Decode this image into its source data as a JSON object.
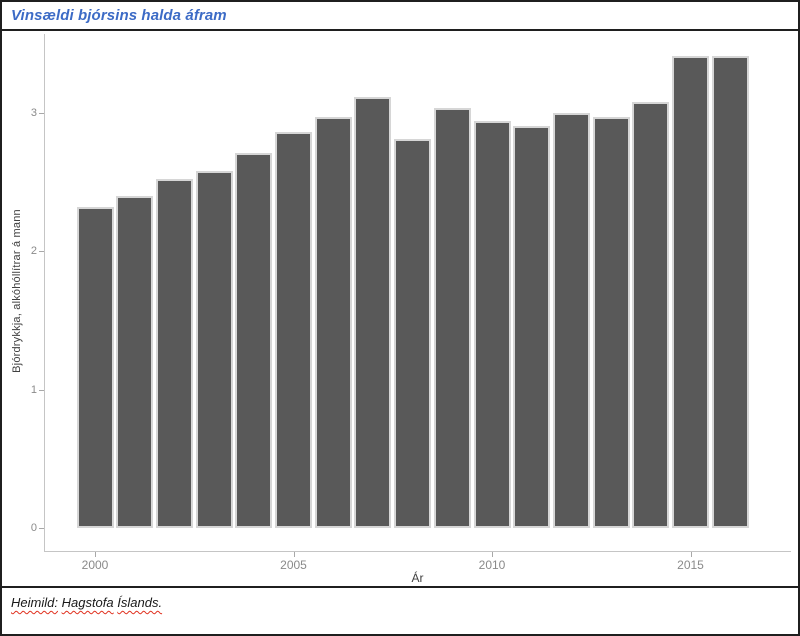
{
  "figure": {
    "title": "Vinsældi bjórsins halda áfram",
    "source_note": {
      "full_text": "Heimild: Hagstofa Íslands.",
      "parts": [
        "Heimild:",
        "Hagstofa",
        "Íslands."
      ]
    }
  },
  "colors": {
    "title_blue": "#3c6bc6",
    "bar_fill": "#595959",
    "bar_stroke": "#d6d6d6",
    "axis_line": "#c5c5c5",
    "tick_mark": "#a8a8a8",
    "tick_label": "#8a8a8a",
    "axis_title": "#404040",
    "spellcheck_underline": "#e0301e",
    "border": "#1f1f1f"
  },
  "chart_data": {
    "type": "bar",
    "title": "Vinsældi bjórsins halda áfram",
    "xlabel": "Ár",
    "ylabel": "Bjórdrykkja, alkóhóllítrar á mann",
    "categories": [
      2000,
      2001,
      2002,
      2003,
      2004,
      2005,
      2006,
      2007,
      2008,
      2009,
      2010,
      2011,
      2012,
      2013,
      2014,
      2015,
      2016
    ],
    "values": [
      2.32,
      2.4,
      2.52,
      2.58,
      2.71,
      2.86,
      2.97,
      3.12,
      2.81,
      3.04,
      2.94,
      2.91,
      3.0,
      2.97,
      3.08,
      3.41,
      3.41
    ],
    "ylim": [
      0,
      3.59
    ],
    "yticks": [
      0,
      1,
      2,
      3
    ],
    "xticks": [
      2000,
      2005,
      2010,
      2015
    ],
    "grid": false,
    "legend": false,
    "bar_color": "#595959",
    "bar_outline": "#d6d6d6"
  }
}
